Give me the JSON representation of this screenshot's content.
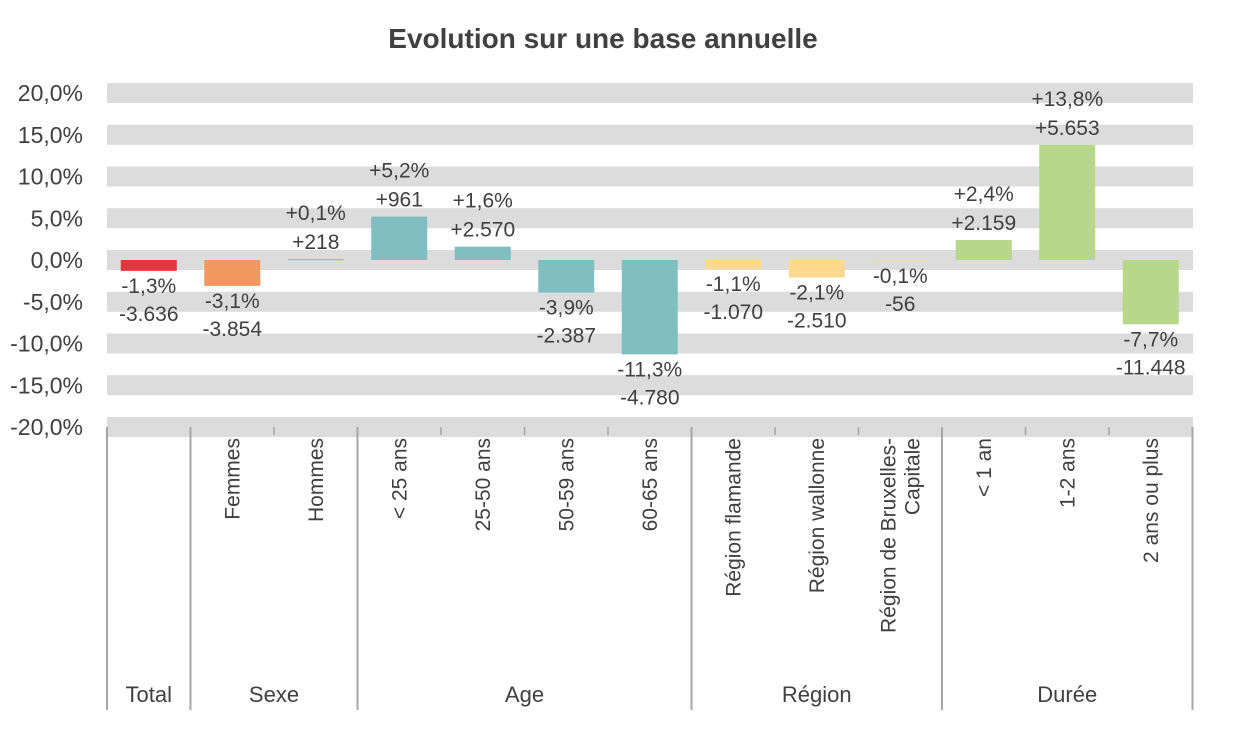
{
  "chart_data": {
    "type": "bar",
    "title": "Evolution sur une base annuelle",
    "xlabel": "",
    "ylabel": "",
    "ylim": [
      -20,
      20
    ],
    "yticks": [
      20,
      15,
      10,
      5,
      0,
      -5,
      -10,
      -15,
      -20
    ],
    "ytick_labels": [
      "20,0%",
      "15,0%",
      "10,0%",
      "5,0%",
      "0,0%",
      "-5,0%",
      "-10,0%",
      "-15,0%",
      "-20,0%"
    ],
    "grid": "horizontal bands",
    "categories": [
      {
        "label": [
          "Total"
        ],
        "group": "Total",
        "value": -1.3,
        "pct_label": "-1,3%",
        "abs_label": "-3.636",
        "color": "#e8343f"
      },
      {
        "label": [
          "Femmes"
        ],
        "group": "Sexe",
        "value": -3.1,
        "pct_label": "-3,1%",
        "abs_label": "-3.854",
        "color": "#f0985f"
      },
      {
        "label": [
          "Hommes"
        ],
        "group": "Sexe",
        "value": 0.1,
        "pct_label": "+0,1%",
        "abs_label": "+218",
        "color": "#f0985f"
      },
      {
        "label": [
          "< 25 ans"
        ],
        "group": "Age",
        "value": 5.2,
        "pct_label": "+5,2%",
        "abs_label": "+961",
        "color": "#80bfbf"
      },
      {
        "label": [
          "25-50 ans"
        ],
        "group": "Age",
        "value": 1.6,
        "pct_label": "+1,6%",
        "abs_label": "+2.570",
        "color": "#80bfbf"
      },
      {
        "label": [
          "50-59 ans"
        ],
        "group": "Age",
        "value": -3.9,
        "pct_label": "-3,9%",
        "abs_label": "-2.387",
        "color": "#80bfbf"
      },
      {
        "label": [
          "60-65 ans"
        ],
        "group": "Age",
        "value": -11.3,
        "pct_label": "-11,3%",
        "abs_label": "-4.780",
        "color": "#80bfbf"
      },
      {
        "label": [
          "Région flamande"
        ],
        "group": "Région",
        "value": -1.1,
        "pct_label": "-1,1%",
        "abs_label": "-1.070",
        "color": "#fcd98e"
      },
      {
        "label": [
          "Région wallonne"
        ],
        "group": "Région",
        "value": -2.1,
        "pct_label": "-2,1%",
        "abs_label": "-2.510",
        "color": "#fcd98e"
      },
      {
        "label": [
          "Région de Bruxelles-",
          "Capitale"
        ],
        "group": "Région",
        "value": -0.1,
        "pct_label": "-0,1%",
        "abs_label": "-56",
        "color": "#fcd98e"
      },
      {
        "label": [
          "< 1 an"
        ],
        "group": "Durée",
        "value": 2.4,
        "pct_label": "+2,4%",
        "abs_label": "+2.159",
        "color": "#b7d78b"
      },
      {
        "label": [
          "1-2 ans"
        ],
        "group": "Durée",
        "value": 13.8,
        "pct_label": "+13,8%",
        "abs_label": "+5.653",
        "color": "#b7d78b"
      },
      {
        "label": [
          "2 ans ou plus"
        ],
        "group": "Durée",
        "value": -7.7,
        "pct_label": "-7,7%",
        "abs_label": "-11.448",
        "color": "#b7d78b"
      }
    ],
    "groups": [
      {
        "name": "Total",
        "from": 0,
        "to": 0
      },
      {
        "name": "Sexe",
        "from": 1,
        "to": 2
      },
      {
        "name": "Age",
        "from": 3,
        "to": 6
      },
      {
        "name": "Région",
        "from": 7,
        "to": 9
      },
      {
        "name": "Durée",
        "from": 10,
        "to": 12
      }
    ],
    "colors": {
      "band": "#dcdcdc",
      "axis": "#a6a6a6",
      "text": "#404040"
    }
  }
}
